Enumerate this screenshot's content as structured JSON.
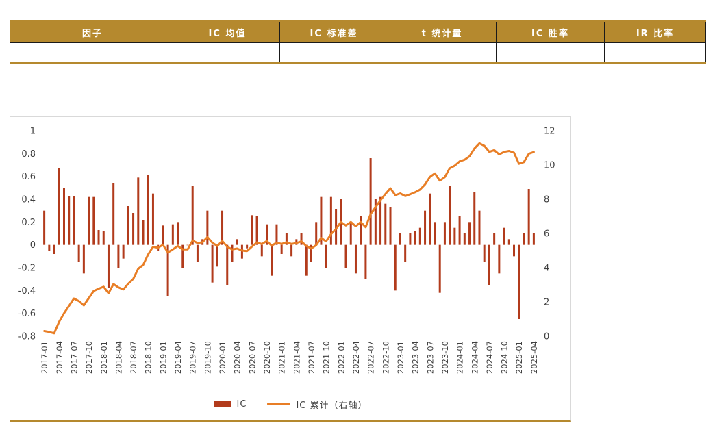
{
  "colors": {
    "gold": "#B5892E",
    "bar_series": "#B23B1C",
    "line_series": "#E87E26",
    "axis_text": "#404040",
    "table_border": "#1a1a1a"
  },
  "table": {
    "headers": [
      "因子",
      "IC 均值",
      "IC 标准差",
      "t 统计量",
      "IC 胜率",
      "IR 比率"
    ],
    "rows": [
      [
        "",
        "",
        "",
        "",
        "",
        ""
      ]
    ]
  },
  "chart_data": {
    "type": "bar",
    "title": "",
    "x_tick_interval": 3,
    "left_axis": {
      "min": -0.8,
      "max": 1,
      "ticks": [
        1,
        0.8,
        0.6,
        0.4,
        0.2,
        0,
        -0.2,
        -0.4,
        -0.6,
        -0.8
      ]
    },
    "right_axis": {
      "min": 0,
      "max": 12,
      "ticks": [
        12,
        10,
        8,
        6,
        4,
        2,
        0
      ]
    },
    "legend_position": "bottom",
    "grid": false,
    "months": [
      "2017-01",
      "2017-02",
      "2017-03",
      "2017-04",
      "2017-05",
      "2017-06",
      "2017-07",
      "2017-08",
      "2017-09",
      "2017-10",
      "2017-11",
      "2017-12",
      "2018-01",
      "2018-02",
      "2018-03",
      "2018-04",
      "2018-05",
      "2018-06",
      "2018-07",
      "2018-08",
      "2018-09",
      "2018-10",
      "2018-11",
      "2018-12",
      "2019-01",
      "2019-02",
      "2019-03",
      "2019-04",
      "2019-05",
      "2019-06",
      "2019-07",
      "2019-08",
      "2019-09",
      "2019-10",
      "2019-11",
      "2019-12",
      "2020-01",
      "2020-02",
      "2020-03",
      "2020-04",
      "2020-05",
      "2020-06",
      "2020-07",
      "2020-08",
      "2020-09",
      "2020-10",
      "2020-11",
      "2020-12",
      "2021-01",
      "2021-02",
      "2021-03",
      "2021-04",
      "2021-05",
      "2021-06",
      "2021-07",
      "2021-08",
      "2021-09",
      "2021-10",
      "2021-11",
      "2021-12",
      "2022-01",
      "2022-02",
      "2022-03",
      "2022-04",
      "2022-05",
      "2022-06",
      "2022-07",
      "2022-08",
      "2022-09",
      "2022-10",
      "2022-11",
      "2022-12",
      "2023-01",
      "2023-02",
      "2023-03",
      "2023-04",
      "2023-05",
      "2023-06",
      "2023-07",
      "2023-08",
      "2023-09",
      "2023-10",
      "2023-11",
      "2023-12",
      "2024-01",
      "2024-02",
      "2024-03",
      "2024-04",
      "2024-05",
      "2024-06",
      "2024-07",
      "2024-08",
      "2024-09",
      "2024-10",
      "2024-11",
      "2024-12",
      "2025-01",
      "2025-02",
      "2025-03",
      "2025-04"
    ],
    "series": [
      {
        "name": "IC",
        "type": "bar",
        "axis": "left",
        "values": [
          0.3,
          -0.05,
          -0.08,
          0.67,
          0.5,
          0.43,
          0.43,
          -0.15,
          -0.25,
          0.42,
          0.42,
          0.13,
          0.12,
          -0.38,
          0.54,
          -0.2,
          -0.12,
          0.34,
          0.28,
          0.59,
          0.22,
          0.61,
          0.45,
          -0.05,
          0.17,
          -0.45,
          0.18,
          0.2,
          -0.2,
          0,
          0.52,
          -0.15,
          0.05,
          0.3,
          -0.33,
          -0.19,
          0.3,
          -0.35,
          -0.15,
          0.05,
          -0.12,
          -0.03,
          0.26,
          0.25,
          -0.1,
          0.18,
          -0.27,
          0.18,
          -0.08,
          0.1,
          -0.1,
          0.05,
          0.1,
          -0.27,
          -0.15,
          0.2,
          0.42,
          -0.2,
          0.42,
          0.31,
          0.4,
          -0.2,
          0.2,
          -0.25,
          0.25,
          -0.3,
          0.76,
          0.4,
          0.42,
          0.36,
          0.33,
          -0.4,
          0.1,
          -0.15,
          0.1,
          0.12,
          0.15,
          0.3,
          0.45,
          0.2,
          -0.42,
          0.2,
          0.52,
          0.15,
          0.25,
          0.1,
          0.2,
          0.46,
          0.3,
          -0.15,
          -0.35,
          0.1,
          -0.25,
          0.15,
          0.05,
          -0.1,
          -0.65,
          0.1,
          0.49,
          0.1
        ]
      },
      {
        "name": "IC 累计（右轴）",
        "type": "line",
        "axis": "right",
        "values": [
          0.3,
          0.25,
          0.17,
          0.84,
          1.34,
          1.77,
          2.2,
          2.05,
          1.8,
          2.22,
          2.64,
          2.77,
          2.89,
          2.51,
          3.05,
          2.85,
          2.73,
          3.07,
          3.35,
          3.94,
          4.16,
          4.77,
          5.22,
          5.17,
          5.34,
          4.89,
          5.07,
          5.27,
          5.07,
          5.07,
          5.59,
          5.44,
          5.49,
          5.79,
          5.46,
          5.27,
          5.57,
          5.22,
          5.07,
          5.12,
          5,
          4.97,
          5.23,
          5.48,
          5.38,
          5.56,
          5.29,
          5.47,
          5.39,
          5.49,
          5.39,
          5.44,
          5.54,
          5.27,
          5.12,
          5.32,
          5.74,
          5.54,
          5.96,
          6.27,
          6.67,
          6.47,
          6.67,
          6.42,
          6.67,
          6.37,
          7.13,
          7.53,
          7.95,
          8.31,
          8.64,
          8.24,
          8.34,
          8.19,
          8.29,
          8.41,
          8.56,
          8.86,
          9.31,
          9.51,
          9.09,
          9.29,
          9.81,
          9.96,
          10.21,
          10.31,
          10.51,
          10.97,
          11.27,
          11.12,
          10.77,
          10.87,
          10.62,
          10.77,
          10.82,
          10.72,
          10.07,
          10.17,
          10.66,
          10.76
        ]
      }
    ]
  }
}
